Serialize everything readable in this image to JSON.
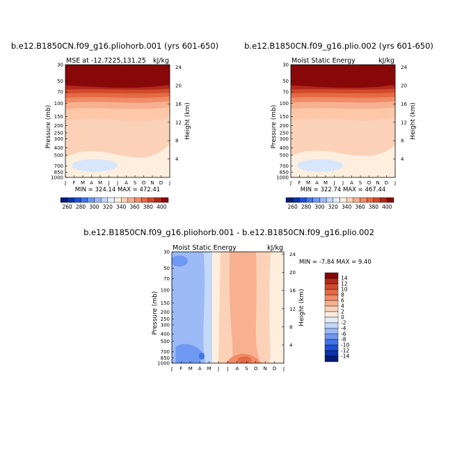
{
  "chart_data": [
    {
      "type": "heatmap",
      "title": "b.e12.B1850CN.f09_g16.pliohorb.001 (yrs 601-650)",
      "subtitle_left": "MSE at -12.7225,131.25",
      "subtitle_right": "kJ/kg",
      "ylabel": "Pressure (mb)",
      "ylabel_right": "Height (km)",
      "xticks": [
        "J",
        "F",
        "M",
        "A",
        "M",
        "J",
        "J",
        "A",
        "S",
        "O",
        "N",
        "D",
        "J"
      ],
      "pressure_ticks": [
        30,
        50,
        70,
        100,
        150,
        200,
        250,
        300,
        400,
        500,
        700,
        850,
        1000
      ],
      "height_ticks": [
        4,
        8,
        12,
        16,
        20,
        24
      ],
      "stats": "MIN = 324.14 MAX = 472.41",
      "min": 324.14,
      "max": 472.41,
      "colorbar": {
        "labels": [
          "260",
          "280",
          "300",
          "320",
          "340",
          "360",
          "380",
          "400"
        ],
        "colors": [
          "#061c7a",
          "#0b32a8",
          "#1e4fd8",
          "#3f74ec",
          "#6f98f2",
          "#9bbaf6",
          "#c4d8fa",
          "#e3edfd",
          "#fdeede",
          "#fbd2b8",
          "#f7b190",
          "#f08c67",
          "#e56a45",
          "#d04a2c",
          "#b0291a",
          "#880809"
        ]
      }
    },
    {
      "type": "heatmap",
      "title": "b.e12.B1850CN.f09_g16.plio.002 (yrs 601-650)",
      "subtitle_left": "Moist Static Energy",
      "subtitle_right": "kJ/kg",
      "ylabel": "Pressure (mb)",
      "ylabel_right": "Height (km)",
      "xticks": [
        "J",
        "F",
        "M",
        "A",
        "M",
        "J",
        "J",
        "A",
        "S",
        "O",
        "N",
        "D",
        "J"
      ],
      "pressure_ticks": [
        30,
        50,
        70,
        100,
        150,
        200,
        250,
        300,
        400,
        500,
        700,
        850,
        1000
      ],
      "height_ticks": [
        4,
        8,
        12,
        16,
        20,
        24
      ],
      "stats": "MIN = 322.74 MAX = 467.44",
      "min": 322.74,
      "max": 467.44,
      "colorbar": {
        "labels": [
          "260",
          "280",
          "300",
          "320",
          "340",
          "360",
          "380",
          "400"
        ],
        "colors": [
          "#061c7a",
          "#0b32a8",
          "#1e4fd8",
          "#3f74ec",
          "#6f98f2",
          "#9bbaf6",
          "#c4d8fa",
          "#e3edfd",
          "#fdeede",
          "#fbd2b8",
          "#f7b190",
          "#f08c67",
          "#e56a45",
          "#d04a2c",
          "#b0291a",
          "#880809"
        ]
      }
    },
    {
      "type": "heatmap",
      "title": "b.e12.B1850CN.f09_g16.pliohorb.001 - b.e12.B1850CN.f09_g16.plio.002",
      "subtitle_left": "Moist Static Energy",
      "subtitle_right": "kJ/kg",
      "ylabel": "Pressure (mb)",
      "ylabel_right": "Height (km)",
      "xticks": [
        "J",
        "F",
        "M",
        "A",
        "M",
        "J",
        "J",
        "A",
        "S",
        "O",
        "N",
        "D",
        "J"
      ],
      "pressure_ticks": [
        30,
        50,
        70,
        100,
        150,
        200,
        250,
        300,
        400,
        500,
        700,
        850,
        1000
      ],
      "height_ticks": [
        4,
        8,
        12,
        16,
        20,
        24
      ],
      "stats": "MIN = -7.84 MAX = 9.40",
      "min": -7.84,
      "max": 9.4,
      "colorbar": {
        "labels": [
          "14",
          "12",
          "10",
          "8",
          "6",
          "4",
          "2",
          "0",
          "-2",
          "-4",
          "-6",
          "-8",
          "-10",
          "-12",
          "-14"
        ],
        "colors": [
          "#880809",
          "#b0291a",
          "#d04a2c",
          "#e56a45",
          "#f08c67",
          "#f7b190",
          "#fbd2b8",
          "#fdeede",
          "#e3edfd",
          "#c4d8fa",
          "#9bbaf6",
          "#6f98f2",
          "#3f74ec",
          "#1e4fd8",
          "#0b32a8",
          "#061c7a"
        ]
      }
    }
  ]
}
